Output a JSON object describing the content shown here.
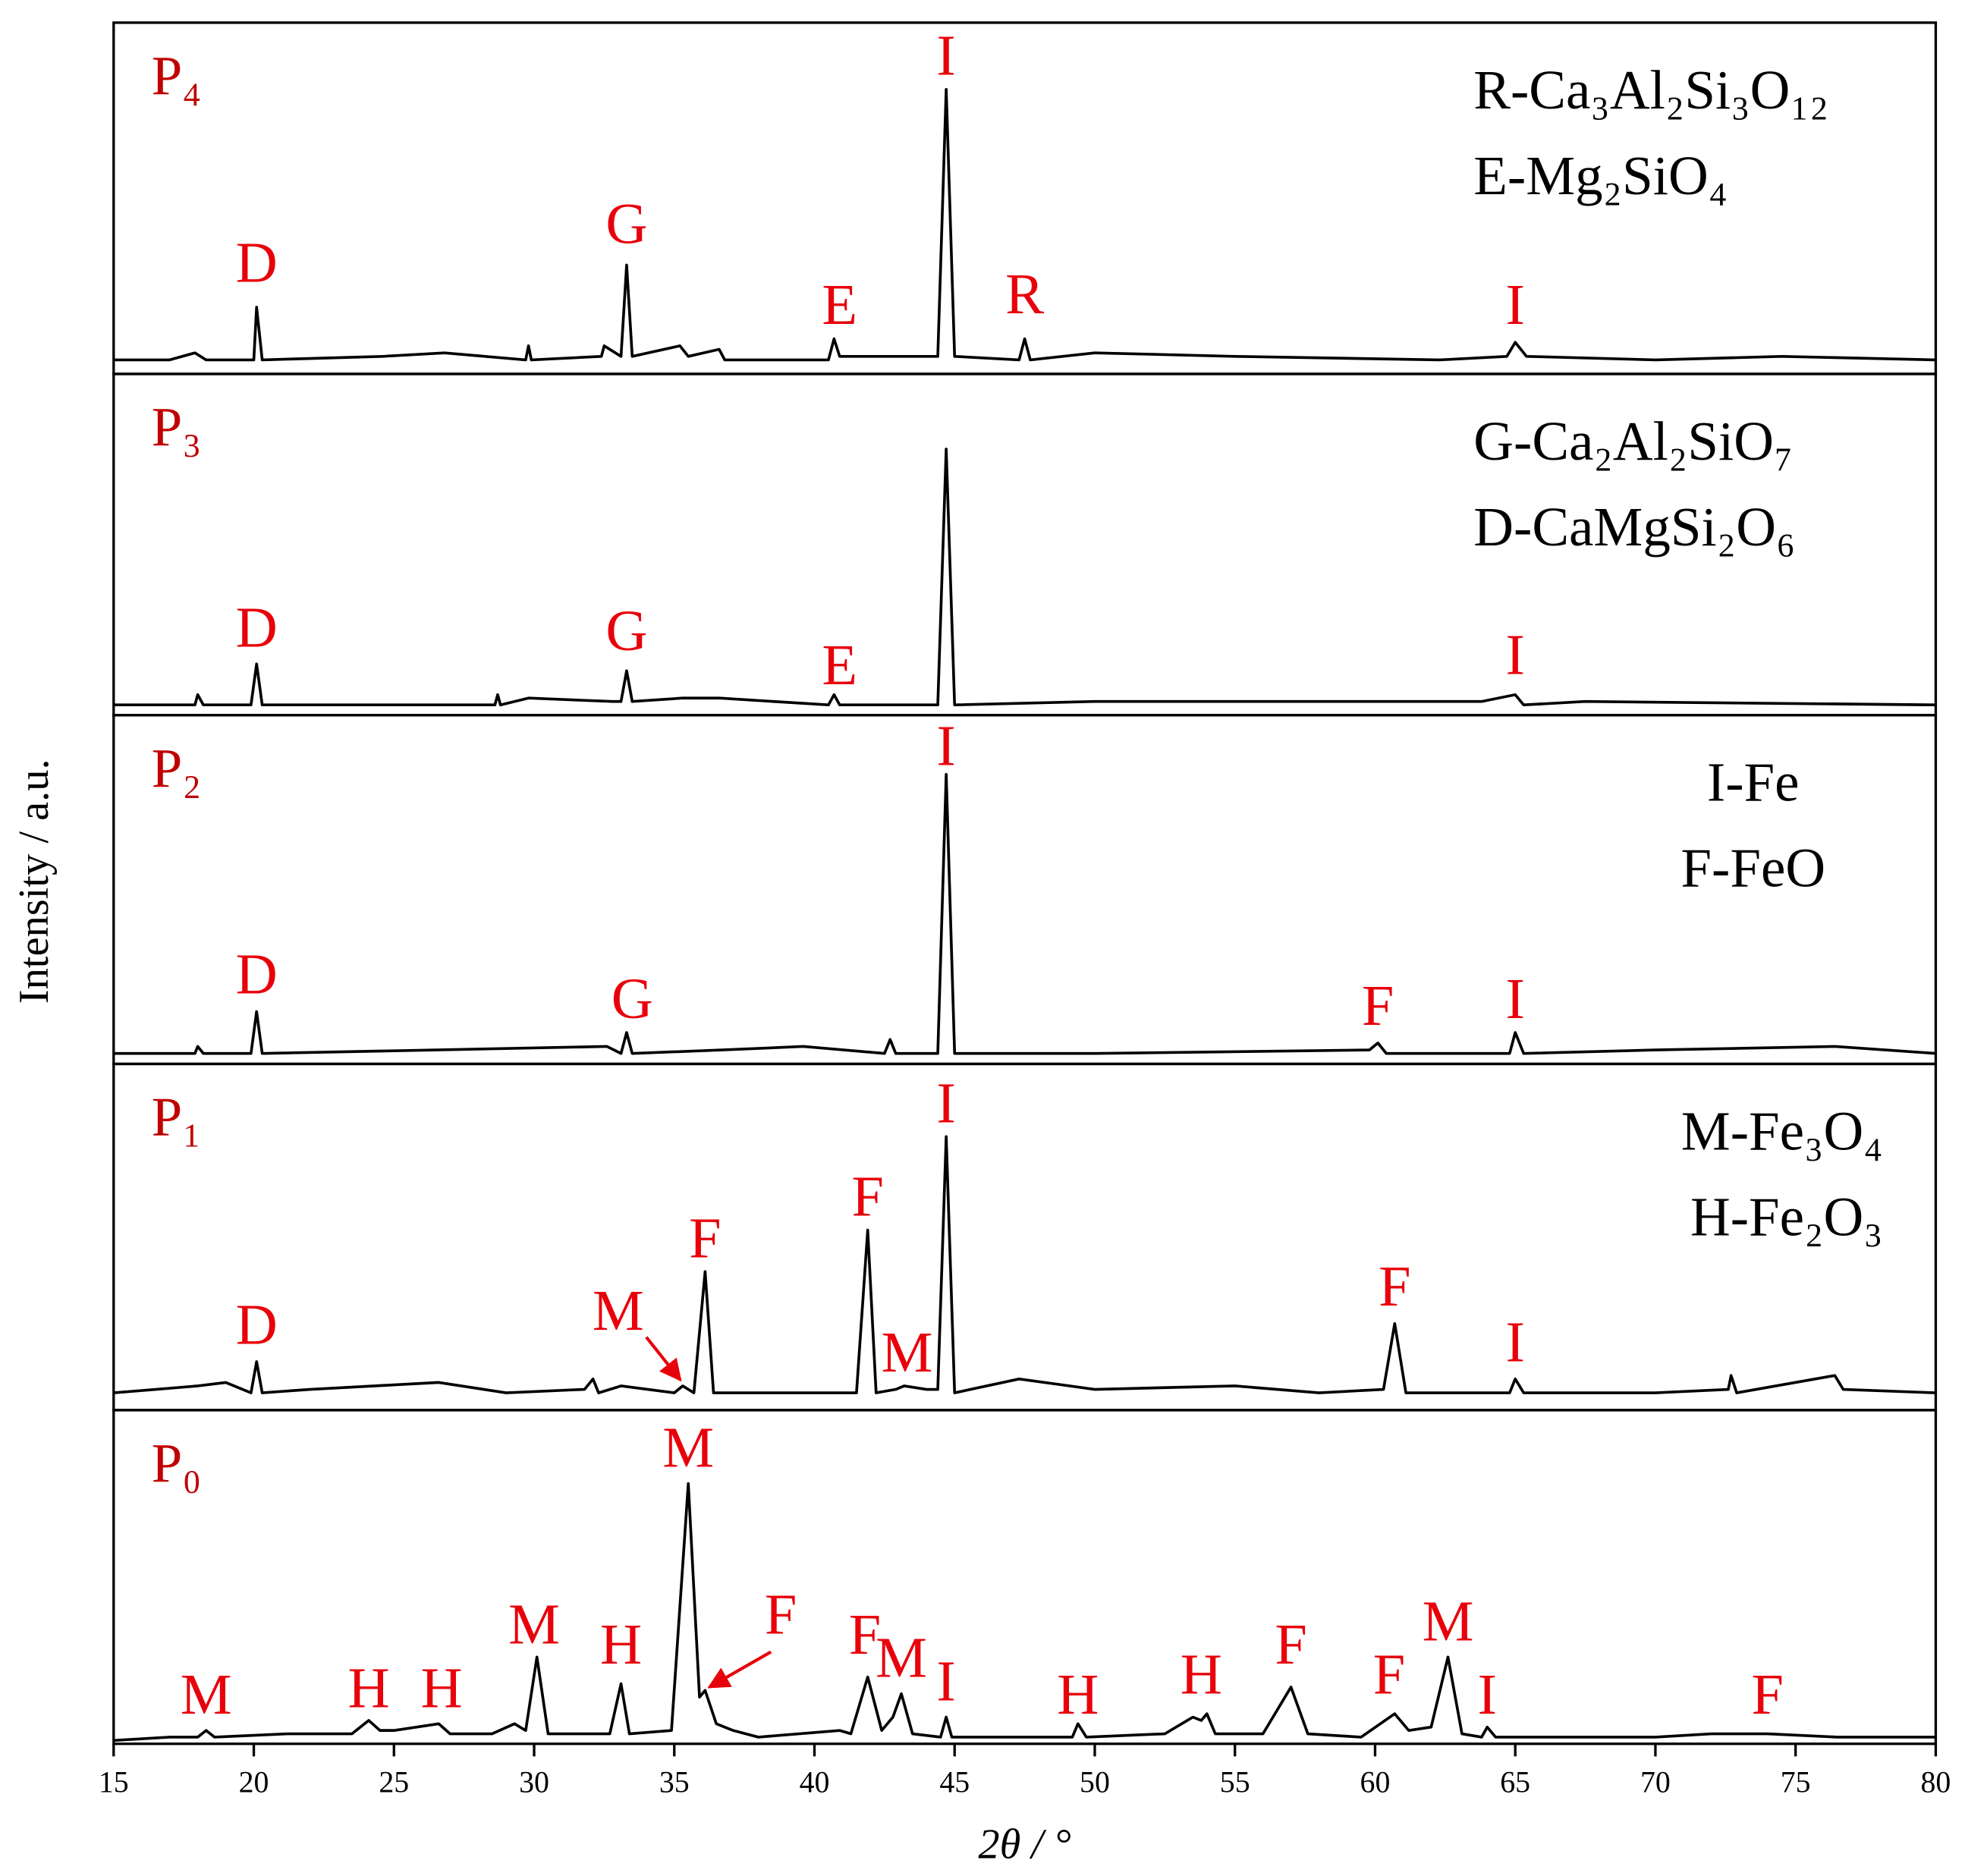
{
  "chart_data": [
    {
      "type": "line",
      "title": "P₄",
      "xlim": [
        15,
        80
      ],
      "ylim": [
        0,
        100
      ],
      "phases": [
        "R-Ca₃Al₂Si₃O₁₂",
        "E-Mg₂SiO₄"
      ],
      "x": [
        15,
        17,
        17.9,
        18.3,
        20,
        20.1,
        20.3,
        24.6,
        26.8,
        29.7,
        29.8,
        29.9,
        32.4,
        32.5,
        33.1,
        33.3,
        33.5,
        35.2,
        35.5,
        36.6,
        36.8,
        40.5,
        40.7,
        40.9,
        44.4,
        44.7,
        45.0,
        47.3,
        47.5,
        47.7,
        50,
        55,
        62.3,
        64.7,
        65.0,
        65.4,
        70,
        74.5,
        80
      ],
      "series": [
        {
          "color": "#000000",
          "values": [
            4,
            4,
            6,
            4,
            4,
            19,
            4,
            5,
            6,
            4,
            8,
            4,
            5,
            8,
            5,
            31,
            5,
            8,
            5,
            7,
            4,
            4,
            10,
            5,
            5,
            81,
            5,
            4,
            10,
            4,
            6,
            5,
            4,
            5,
            9,
            5,
            4,
            5,
            4
          ]
        }
      ],
      "annotation_color": "#e8000b",
      "annotations": [
        {
          "text": "D",
          "x": 20.1,
          "y": 30
        },
        {
          "text": "G",
          "x": 33.3,
          "y": 41
        },
        {
          "text": "E",
          "x": 40.9,
          "y": 18
        },
        {
          "text": "I",
          "x": 44.7,
          "y": 89
        },
        {
          "text": "R",
          "x": 47.5,
          "y": 21
        },
        {
          "text": "I",
          "x": 65,
          "y": 18
        }
      ]
    },
    {
      "type": "line",
      "title": "P₃",
      "xlim": [
        15,
        80
      ],
      "ylim": [
        0,
        100
      ],
      "phases": [
        "G-Ca₂Al₂SiO₇",
        "D-CaMgSi₂O₆"
      ],
      "x": [
        15,
        17.9,
        18.0,
        18.2,
        19.9,
        20.1,
        20.3,
        28.6,
        28.7,
        28.8,
        29.8,
        32.8,
        33.1,
        33.3,
        33.5,
        35.3,
        36.6,
        40.5,
        40.7,
        40.9,
        44.4,
        44.7,
        45.0,
        50,
        56.7,
        63.8,
        65.0,
        65.3,
        67.5,
        80
      ],
      "series": [
        {
          "color": "#000000",
          "values": [
            3,
            3,
            6,
            3,
            3,
            15,
            3,
            3,
            6,
            3,
            5,
            4,
            4,
            13,
            4,
            5,
            5,
            3,
            6,
            3,
            3,
            78,
            3,
            4,
            4,
            4,
            6,
            3,
            4,
            3
          ]
        }
      ],
      "annotation_color": "#e8000b",
      "annotations": [
        {
          "text": "D",
          "x": 20.1,
          "y": 24
        },
        {
          "text": "G",
          "x": 33.3,
          "y": 23
        },
        {
          "text": "E",
          "x": 40.9,
          "y": 13
        },
        {
          "text": "I",
          "x": 65,
          "y": 16
        }
      ]
    },
    {
      "type": "line",
      "title": "P₂",
      "xlim": [
        15,
        80
      ],
      "ylim": [
        0,
        100
      ],
      "phases": [
        "I-Fe",
        "F-FeO"
      ],
      "x": [
        15,
        17.9,
        18,
        18.2,
        19.9,
        20.1,
        20.3,
        32.6,
        33.1,
        33.3,
        33.5,
        36.7,
        39.6,
        42.5,
        42.7,
        42.9,
        44.4,
        44.7,
        45.0,
        50,
        59.8,
        60.1,
        60.4,
        64.8,
        65.0,
        65.3,
        70,
        76.4,
        80
      ],
      "series": [
        {
          "color": "#000000",
          "values": [
            3,
            3,
            5,
            3,
            3,
            15,
            3,
            5,
            3,
            9,
            3,
            4,
            5,
            3,
            7,
            3,
            3,
            83,
            3,
            3,
            4,
            6,
            3,
            3,
            9,
            3,
            4,
            5,
            3
          ]
        }
      ],
      "annotation_color": "#e8000b",
      "annotations": [
        {
          "text": "I",
          "x": 44.7,
          "y": 89.5
        },
        {
          "text": "D",
          "x": 20.1,
          "y": 24
        },
        {
          "text": "G",
          "x": 33.5,
          "y": 17
        },
        {
          "text": "F",
          "x": 60.1,
          "y": 15
        },
        {
          "text": "I",
          "x": 65,
          "y": 17
        }
      ]
    },
    {
      "type": "line",
      "title": "P₁",
      "xlim": [
        15,
        80
      ],
      "ylim": [
        0,
        100
      ],
      "phases": [
        "M-Fe₃O₄",
        "H-Fe₂O₃"
      ],
      "x": [
        15,
        16.5,
        18,
        19,
        19.9,
        20.1,
        20.3,
        22,
        26.6,
        29,
        31.8,
        32.1,
        32.3,
        33.1,
        35.0,
        35.3,
        35.7,
        36.1,
        36.4,
        41.5,
        41.9,
        42.2,
        42.9,
        43.2,
        44.0,
        44.4,
        44.7,
        45.0,
        47.3,
        50,
        55,
        58,
        60.3,
        60.7,
        61.1,
        64.8,
        65.0,
        65.3,
        70,
        72.6,
        72.7,
        72.9,
        76.4,
        76.7,
        80
      ],
      "series": [
        {
          "color": "#000000",
          "values": [
            5,
            6,
            7,
            8,
            5,
            14,
            5,
            6,
            8,
            5,
            6,
            9,
            5,
            7,
            5,
            7,
            5,
            40,
            5,
            5,
            52,
            5,
            6,
            7,
            6,
            6,
            79,
            5,
            9,
            6,
            7,
            5,
            6,
            25,
            5,
            5,
            9,
            5,
            5,
            6,
            10,
            5,
            10,
            6,
            5
          ]
        }
      ],
      "annotation_color": "#e8000b",
      "annotations": [
        {
          "text": "I",
          "x": 44.7,
          "y": 87
        },
        {
          "text": "F",
          "x": 36.1,
          "y": 48
        },
        {
          "text": "F",
          "x": 41.9,
          "y": 60
        },
        {
          "text": "M",
          "x": 43.3,
          "y": 15
        },
        {
          "text": "M",
          "x": 33.0,
          "y": 27
        },
        {
          "text": "D",
          "x": 20.1,
          "y": 23
        },
        {
          "text": "F",
          "x": 60.7,
          "y": 34
        },
        {
          "text": "I",
          "x": 65,
          "y": 18
        }
      ]
    },
    {
      "type": "line",
      "title": "P₀",
      "xlim": [
        15,
        80
      ],
      "ylim": [
        0,
        100
      ],
      "xticks": [
        15,
        20,
        25,
        30,
        35,
        40,
        45,
        50,
        55,
        60,
        65,
        70,
        75,
        80
      ],
      "xlabel": "2θ / °",
      "ylabel": "Intensity / a.u.",
      "x": [
        15,
        17,
        18.0,
        18.3,
        18.6,
        21.2,
        23.5,
        24.1,
        24.5,
        25,
        26.6,
        27,
        28.5,
        29.3,
        29.7,
        30.1,
        30.5,
        32.7,
        33.1,
        33.4,
        34.9,
        35.5,
        35.9,
        36.1,
        36.5,
        37.1,
        38,
        40.9,
        41.3,
        41.9,
        42.4,
        42.8,
        43.1,
        43.5,
        44.5,
        44.7,
        44.9,
        47,
        49.2,
        49.4,
        49.7,
        52.5,
        53.5,
        53.8,
        54.0,
        54.3,
        56,
        57,
        57.6,
        59.5,
        60.7,
        61.2,
        62.0,
        62.6,
        63.1,
        63.8,
        64.0,
        64.3,
        70,
        72,
        74,
        76.5,
        80
      ],
      "series": [
        {
          "color": "#000000",
          "values": [
            1,
            2,
            2,
            4,
            2,
            3,
            3,
            7,
            4,
            4,
            6,
            3,
            3,
            6,
            4,
            26,
            3,
            3,
            18,
            3,
            4,
            78,
            14,
            16,
            6,
            4,
            2,
            4,
            3,
            20,
            4,
            8,
            15,
            3,
            2,
            8,
            2,
            2,
            2,
            6,
            2,
            3,
            8,
            7,
            9,
            3,
            3,
            17,
            3,
            2,
            9,
            4,
            5,
            26,
            3,
            2,
            5,
            2,
            2,
            3,
            3,
            2,
            2
          ]
        }
      ],
      "annotation_color": "#e8000b",
      "annotations": [
        {
          "text": "M",
          "x": 18.3,
          "y": 13
        },
        {
          "text": "H",
          "x": 24.1,
          "y": 15
        },
        {
          "text": "H",
          "x": 26.7,
          "y": 15
        },
        {
          "text": "M",
          "x": 30.0,
          "y": 34
        },
        {
          "text": "H",
          "x": 33.1,
          "y": 28
        },
        {
          "text": "M",
          "x": 35.5,
          "y": 87
        },
        {
          "text": "F",
          "x": 38.8,
          "y": 37
        },
        {
          "text": "F",
          "x": 41.8,
          "y": 31
        },
        {
          "text": "M",
          "x": 43.1,
          "y": 24
        },
        {
          "text": "I",
          "x": 44.7,
          "y": 17
        },
        {
          "text": "H",
          "x": 49.4,
          "y": 13
        },
        {
          "text": "H",
          "x": 53.8,
          "y": 19
        },
        {
          "text": "F",
          "x": 57,
          "y": 28
        },
        {
          "text": "F",
          "x": 60.5,
          "y": 19
        },
        {
          "text": "M",
          "x": 62.6,
          "y": 35
        },
        {
          "text": "I",
          "x": 64,
          "y": 13
        },
        {
          "text": "F",
          "x": 74,
          "y": 13
        }
      ]
    }
  ]
}
